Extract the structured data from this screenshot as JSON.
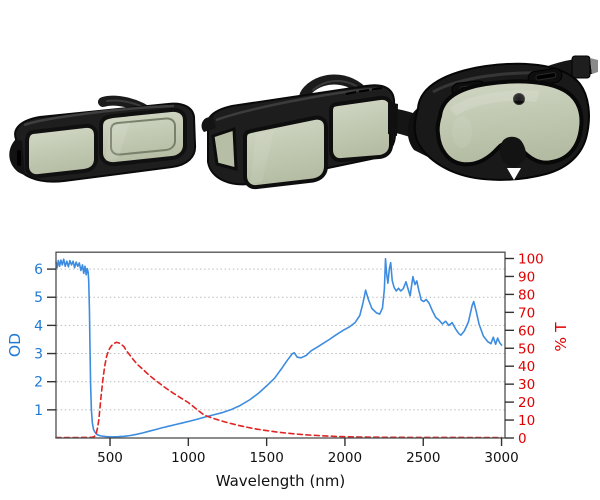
{
  "products": {
    "items": [
      {
        "name": "fit-over-spectacles-compact",
        "frame_color": "#1e1e1e",
        "lens_color": "#c3cab3"
      },
      {
        "name": "fit-over-spectacles-large",
        "frame_color": "#1d1d1d",
        "lens_color": "#c3cab3"
      },
      {
        "name": "laser-safety-goggles-with-strap",
        "frame_color": "#191919",
        "lens_color": "#c2c8b2"
      }
    ]
  },
  "chart_data": {
    "type": "line",
    "title": "",
    "xlabel": "Wavelength (nm)",
    "xlabel_color": "#111111",
    "xlim": [
      155,
      3022
    ],
    "x_ticks": [
      500,
      1000,
      1500,
      2000,
      2500,
      3000
    ],
    "x_tick_color": "#111111",
    "grid": {
      "horizontal_dotted_at_left_ticks": true,
      "color": "#bcbcbc"
    },
    "legend": "none",
    "left_axis": {
      "label": "OD",
      "color": "#1f7ad4",
      "ticks": [
        1,
        2,
        3,
        4,
        5,
        6
      ],
      "lim": [
        0,
        6.6
      ]
    },
    "right_axis": {
      "label": "% T",
      "color": "#e00000",
      "ticks": [
        0,
        10,
        20,
        30,
        40,
        50,
        60,
        70,
        80,
        90,
        100
      ],
      "lim": [
        0,
        100
      ]
    },
    "series": [
      {
        "name": "OD",
        "axis": "left",
        "style": "solid",
        "color": "#3d8ce0",
        "points": [
          [
            155,
            6.25
          ],
          [
            162,
            6.05
          ],
          [
            170,
            6.3
          ],
          [
            178,
            6.1
          ],
          [
            186,
            6.32
          ],
          [
            195,
            6.15
          ],
          [
            204,
            6.35
          ],
          [
            214,
            6.1
          ],
          [
            224,
            6.28
          ],
          [
            234,
            6.08
          ],
          [
            244,
            6.3
          ],
          [
            254,
            6.15
          ],
          [
            264,
            6.28
          ],
          [
            274,
            6.05
          ],
          [
            284,
            6.25
          ],
          [
            294,
            6.1
          ],
          [
            304,
            6.22
          ],
          [
            314,
            5.95
          ],
          [
            324,
            6.15
          ],
          [
            332,
            5.85
          ],
          [
            340,
            6.1
          ],
          [
            348,
            5.8
          ],
          [
            354,
            6.02
          ],
          [
            360,
            5.9
          ],
          [
            364,
            5.6
          ],
          [
            368,
            4.6
          ],
          [
            372,
            3.2
          ],
          [
            376,
            1.9
          ],
          [
            381,
            1.0
          ],
          [
            387,
            0.55
          ],
          [
            394,
            0.32
          ],
          [
            402,
            0.22
          ],
          [
            412,
            0.15
          ],
          [
            425,
            0.1
          ],
          [
            445,
            0.07
          ],
          [
            475,
            0.05
          ],
          [
            510,
            0.04
          ],
          [
            550,
            0.045
          ],
          [
            590,
            0.06
          ],
          [
            630,
            0.09
          ],
          [
            670,
            0.13
          ],
          [
            710,
            0.18
          ],
          [
            750,
            0.24
          ],
          [
            790,
            0.3
          ],
          [
            830,
            0.36
          ],
          [
            875,
            0.42
          ],
          [
            920,
            0.48
          ],
          [
            965,
            0.54
          ],
          [
            1010,
            0.6
          ],
          [
            1060,
            0.67
          ],
          [
            1110,
            0.75
          ],
          [
            1160,
            0.82
          ],
          [
            1215,
            0.9
          ],
          [
            1270,
            1.0
          ],
          [
            1330,
            1.15
          ],
          [
            1390,
            1.35
          ],
          [
            1450,
            1.6
          ],
          [
            1500,
            1.85
          ],
          [
            1550,
            2.12
          ],
          [
            1600,
            2.5
          ],
          [
            1632,
            2.76
          ],
          [
            1662,
            2.98
          ],
          [
            1676,
            3.03
          ],
          [
            1695,
            2.87
          ],
          [
            1720,
            2.85
          ],
          [
            1752,
            2.93
          ],
          [
            1785,
            3.1
          ],
          [
            1820,
            3.22
          ],
          [
            1858,
            3.35
          ],
          [
            1900,
            3.5
          ],
          [
            1945,
            3.67
          ],
          [
            1990,
            3.83
          ],
          [
            2030,
            3.95
          ],
          [
            2065,
            4.1
          ],
          [
            2095,
            4.35
          ],
          [
            2115,
            4.8
          ],
          [
            2132,
            5.25
          ],
          [
            2150,
            4.92
          ],
          [
            2172,
            4.6
          ],
          [
            2200,
            4.45
          ],
          [
            2222,
            4.4
          ],
          [
            2240,
            4.62
          ],
          [
            2252,
            5.3
          ],
          [
            2259,
            6.37
          ],
          [
            2266,
            5.85
          ],
          [
            2274,
            5.5
          ],
          [
            2283,
            6.0
          ],
          [
            2292,
            6.23
          ],
          [
            2302,
            5.6
          ],
          [
            2314,
            5.35
          ],
          [
            2328,
            5.22
          ],
          [
            2342,
            5.32
          ],
          [
            2356,
            5.22
          ],
          [
            2372,
            5.3
          ],
          [
            2390,
            5.55
          ],
          [
            2404,
            5.28
          ],
          [
            2416,
            5.05
          ],
          [
            2434,
            5.73
          ],
          [
            2447,
            5.45
          ],
          [
            2459,
            5.58
          ],
          [
            2470,
            5.28
          ],
          [
            2487,
            4.9
          ],
          [
            2503,
            4.85
          ],
          [
            2519,
            4.92
          ],
          [
            2538,
            4.78
          ],
          [
            2560,
            4.5
          ],
          [
            2580,
            4.28
          ],
          [
            2602,
            4.18
          ],
          [
            2622,
            4.05
          ],
          [
            2643,
            4.15
          ],
          [
            2663,
            4.0
          ],
          [
            2684,
            4.1
          ],
          [
            2706,
            3.88
          ],
          [
            2726,
            3.72
          ],
          [
            2740,
            3.65
          ],
          [
            2762,
            3.8
          ],
          [
            2788,
            4.12
          ],
          [
            2812,
            4.7
          ],
          [
            2822,
            4.85
          ],
          [
            2838,
            4.5
          ],
          [
            2856,
            4.05
          ],
          [
            2884,
            3.62
          ],
          [
            2912,
            3.42
          ],
          [
            2932,
            3.35
          ],
          [
            2947,
            3.58
          ],
          [
            2962,
            3.33
          ],
          [
            2975,
            3.55
          ],
          [
            2988,
            3.38
          ],
          [
            3000,
            3.3
          ]
        ]
      },
      {
        "name": "% T",
        "axis": "right",
        "style": "dashed",
        "color": "#e02424",
        "points": [
          [
            155,
            0.3
          ],
          [
            300,
            0.3
          ],
          [
            385,
            0.4
          ],
          [
            400,
            0.8
          ],
          [
            412,
            2.5
          ],
          [
            420,
            5.5
          ],
          [
            428,
            10
          ],
          [
            436,
            17
          ],
          [
            445,
            25
          ],
          [
            455,
            33
          ],
          [
            466,
            40
          ],
          [
            478,
            45.5
          ],
          [
            492,
            49
          ],
          [
            508,
            51.3
          ],
          [
            524,
            52.6
          ],
          [
            540,
            53.3
          ],
          [
            556,
            53.0
          ],
          [
            572,
            52.2
          ],
          [
            590,
            50.8
          ],
          [
            605,
            48.5
          ],
          [
            628,
            46
          ],
          [
            650,
            43.5
          ],
          [
            675,
            41
          ],
          [
            700,
            39
          ],
          [
            725,
            37
          ],
          [
            750,
            35
          ],
          [
            775,
            33.2
          ],
          [
            800,
            31.5
          ],
          [
            850,
            28.2
          ],
          [
            900,
            25.2
          ],
          [
            950,
            22.4
          ],
          [
            1000,
            19.8
          ],
          [
            1050,
            16.2
          ],
          [
            1100,
            12.8
          ],
          [
            1150,
            11.2
          ],
          [
            1200,
            9.8
          ],
          [
            1260,
            8.3
          ],
          [
            1320,
            7.0
          ],
          [
            1380,
            5.9
          ],
          [
            1440,
            4.9
          ],
          [
            1500,
            4.1
          ],
          [
            1560,
            3.4
          ],
          [
            1620,
            2.8
          ],
          [
            1680,
            2.3
          ],
          [
            1740,
            1.85
          ],
          [
            1800,
            1.5
          ],
          [
            1870,
            1.15
          ],
          [
            1940,
            0.9
          ],
          [
            2010,
            0.7
          ],
          [
            2090,
            0.55
          ],
          [
            2180,
            0.45
          ],
          [
            2300,
            0.4
          ],
          [
            2450,
            0.35
          ],
          [
            2600,
            0.32
          ],
          [
            2800,
            0.3
          ],
          [
            3000,
            0.3
          ]
        ]
      }
    ]
  }
}
